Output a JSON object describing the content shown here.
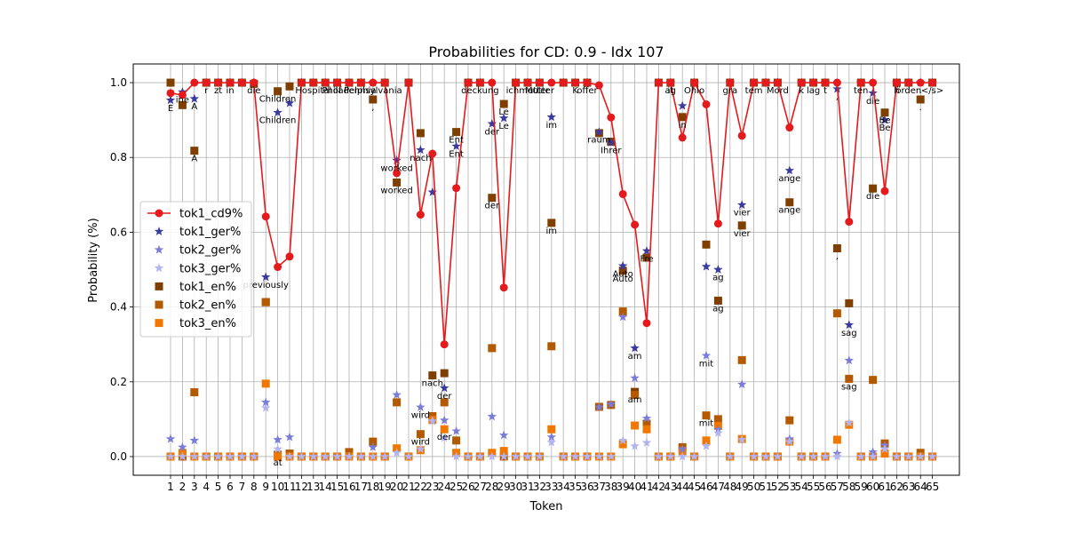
{
  "chart_data": {
    "type": "line",
    "title": "Probabilities for CD: 0.9 - Idx 107",
    "xlabel": "Token",
    "ylabel": "Probability (%)",
    "ylim": [
      -0.05,
      1.05
    ],
    "yticks": [
      0.0,
      0.2,
      0.4,
      0.6,
      0.8,
      1.0
    ],
    "grid": true,
    "legend_placement": "center-left",
    "categories": [
      "1",
      "2",
      "3",
      "4",
      "5",
      "6",
      "7",
      "8",
      "9",
      "10",
      "11",
      "12",
      "13",
      "14",
      "15",
      "16",
      "17",
      "18",
      "19",
      "20",
      "21",
      "22",
      "23",
      "24",
      "25",
      "26",
      "27",
      "28",
      "29",
      "30",
      "31",
      "32",
      "33",
      "34",
      "35",
      "36",
      "37",
      "38",
      "39",
      "40",
      "41",
      "42",
      "43",
      "44",
      "45",
      "46",
      "47",
      "48",
      "49",
      "50",
      "51",
      "52",
      "53",
      "54",
      "55",
      "56",
      "57",
      "58",
      "59",
      "60",
      "61",
      "62",
      "63",
      "64",
      "65"
    ],
    "series": [
      {
        "name": "tok1_cd9%",
        "color": "#e41a1c",
        "marker": "circle",
        "line": true,
        "values": [
          0.972,
          0.967,
          1.0,
          1.0,
          1.0,
          1.0,
          1.0,
          1.0,
          0.642,
          0.507,
          0.535,
          1.0,
          1.0,
          1.0,
          1.0,
          1.0,
          1.0,
          1.0,
          1.0,
          0.758,
          1.0,
          0.647,
          0.81,
          0.3,
          0.718,
          1.0,
          1.0,
          1.0,
          0.452,
          1.0,
          1.0,
          1.0,
          1.0,
          1.0,
          1.0,
          1.0,
          0.993,
          0.907,
          0.702,
          0.62,
          0.357,
          1.0,
          1.0,
          0.853,
          1.0,
          0.942,
          0.623,
          1.0,
          0.858,
          1.0,
          1.0,
          1.0,
          0.88,
          1.0,
          1.0,
          1.0,
          1.0,
          0.628,
          1.0,
          1.0,
          0.71,
          1.0,
          1.0,
          1.0,
          1.0
        ]
      },
      {
        "name": "tok1_ger%",
        "color": "#3b3b9e",
        "marker": "star",
        "values": [
          0.953,
          0.975,
          0.957,
          1.0,
          1.0,
          1.0,
          1.0,
          1.0,
          0.48,
          0.92,
          0.945,
          1.0,
          1.0,
          1.0,
          1.0,
          1.0,
          1.0,
          1.0,
          1.0,
          0.792,
          1.0,
          0.82,
          0.707,
          0.183,
          0.83,
          1.0,
          1.0,
          0.89,
          0.905,
          1.0,
          1.0,
          1.0,
          0.908,
          1.0,
          1.0,
          1.0,
          0.868,
          0.84,
          0.51,
          0.29,
          0.55,
          1.0,
          1.0,
          0.938,
          1.0,
          0.508,
          0.5,
          1.0,
          0.673,
          1.0,
          1.0,
          1.0,
          0.765,
          1.0,
          1.0,
          1.0,
          0.983,
          0.352,
          1.0,
          0.972,
          0.9,
          1.0,
          1.0,
          1.0,
          1.0
        ]
      },
      {
        "name": "tok2_ger%",
        "color": "#7b7bd8",
        "marker": "star",
        "values": [
          0.047,
          0.025,
          0.043,
          0.0,
          0.0,
          0.0,
          0.0,
          0.0,
          0.145,
          0.045,
          0.052,
          0.0,
          0.0,
          0.0,
          0.0,
          0.0,
          0.0,
          0.025,
          0.0,
          0.165,
          0.0,
          0.132,
          0.095,
          0.097,
          0.068,
          0.0,
          0.0,
          0.107,
          0.057,
          0.0,
          0.0,
          0.0,
          0.052,
          0.0,
          0.0,
          0.0,
          0.132,
          0.14,
          0.373,
          0.21,
          0.102,
          0.0,
          0.0,
          0.02,
          0.0,
          0.27,
          0.072,
          0.0,
          0.193,
          0.0,
          0.0,
          0.0,
          0.047,
          0.0,
          0.0,
          0.0,
          0.008,
          0.257,
          0.0,
          0.012,
          0.03,
          0.0,
          0.0,
          0.0,
          0.0
        ]
      },
      {
        "name": "tok3_ger%",
        "color": "#b3b3f0",
        "marker": "star",
        "values": [
          0.0,
          0.0,
          0.0,
          0.0,
          0.0,
          0.0,
          0.0,
          0.0,
          0.13,
          0.02,
          0.0,
          0.0,
          0.0,
          0.0,
          0.0,
          0.0,
          0.0,
          0.0,
          0.0,
          0.01,
          0.0,
          0.02,
          0.095,
          0.05,
          0.0,
          0.0,
          0.0,
          0.0,
          0.0,
          0.0,
          0.0,
          0.0,
          0.038,
          0.0,
          0.0,
          0.0,
          0.0,
          0.0,
          0.043,
          0.028,
          0.037,
          0.0,
          0.0,
          0.0,
          0.0,
          0.028,
          0.063,
          0.0,
          0.045,
          0.0,
          0.0,
          0.0,
          0.04,
          0.0,
          0.0,
          0.0,
          0.0,
          0.09,
          0.0,
          0.0,
          0.02,
          0.0,
          0.0,
          0.0,
          0.0
        ]
      },
      {
        "name": "tok1_en%",
        "color": "#7f3f00",
        "marker": "square",
        "values": [
          1.0,
          0.94,
          0.818,
          1.0,
          1.0,
          1.0,
          1.0,
          0.997,
          0.413,
          0.977,
          0.99,
          1.0,
          1.0,
          1.0,
          1.0,
          1.0,
          1.0,
          0.955,
          1.0,
          0.733,
          1.0,
          0.865,
          0.217,
          0.223,
          0.868,
          1.0,
          1.0,
          0.692,
          0.943,
          1.0,
          1.0,
          1.0,
          0.625,
          1.0,
          1.0,
          1.0,
          0.865,
          0.842,
          0.497,
          0.173,
          0.532,
          1.0,
          1.0,
          0.908,
          1.0,
          0.567,
          0.417,
          1.0,
          0.618,
          1.0,
          1.0,
          1.0,
          0.68,
          1.0,
          1.0,
          1.0,
          0.557,
          0.41,
          1.0,
          0.717,
          0.92,
          1.0,
          1.0,
          0.955,
          1.0
        ]
      },
      {
        "name": "tok2_en%",
        "color": "#b35900",
        "marker": "square",
        "values": [
          0.0,
          0.0,
          0.172,
          0.0,
          0.0,
          0.0,
          0.0,
          0.0,
          0.413,
          0.005,
          0.008,
          0.0,
          0.0,
          0.0,
          0.0,
          0.012,
          0.0,
          0.04,
          0.0,
          0.145,
          0.0,
          0.06,
          0.108,
          0.145,
          0.043,
          0.0,
          0.0,
          0.29,
          0.0,
          0.0,
          0.0,
          0.0,
          0.295,
          0.0,
          0.0,
          0.0,
          0.133,
          0.138,
          0.388,
          0.165,
          0.088,
          0.0,
          0.0,
          0.025,
          0.0,
          0.11,
          0.1,
          0.0,
          0.258,
          0.0,
          0.0,
          0.0,
          0.097,
          0.0,
          0.0,
          0.0,
          0.383,
          0.208,
          0.0,
          0.205,
          0.035,
          0.0,
          0.0,
          0.01,
          0.0
        ]
      },
      {
        "name": "tok3_en%",
        "color": "#f07800",
        "marker": "square",
        "values": [
          0.0,
          0.01,
          0.0,
          0.0,
          0.0,
          0.0,
          0.0,
          0.0,
          0.195,
          0.0,
          0.0,
          0.0,
          0.0,
          0.0,
          0.0,
          0.0,
          0.0,
          0.0,
          0.0,
          0.022,
          0.0,
          0.017,
          0.098,
          0.073,
          0.01,
          0.0,
          0.0,
          0.01,
          0.015,
          0.0,
          0.0,
          0.0,
          0.073,
          0.0,
          0.0,
          0.0,
          0.0,
          0.0,
          0.033,
          0.083,
          0.073,
          0.0,
          0.0,
          0.015,
          0.0,
          0.043,
          0.082,
          0.0,
          0.047,
          0.0,
          0.0,
          0.0,
          0.04,
          0.0,
          0.0,
          0.0,
          0.045,
          0.085,
          0.0,
          0.0,
          0.008,
          0.0,
          0.0,
          0.0,
          0.0
        ]
      }
    ],
    "annotations": [
      {
        "x": 1,
        "y": 0.953,
        "text": "E"
      },
      {
        "x": 2,
        "y": 0.975,
        "text": "ine"
      },
      {
        "x": 3,
        "y": 0.957,
        "text": "A"
      },
      {
        "x": 3,
        "y": 0.818,
        "text": "A"
      },
      {
        "x": 4,
        "y": 1.0,
        "text": "r"
      },
      {
        "x": 5,
        "y": 1.0,
        "text": "zt"
      },
      {
        "x": 6,
        "y": 1.0,
        "text": "in"
      },
      {
        "x": 8,
        "y": 1.0,
        "text": "die"
      },
      {
        "x": 9,
        "y": 0.48,
        "text": "previously"
      },
      {
        "x": 10,
        "y": 0.977,
        "text": "Children"
      },
      {
        "x": 10,
        "y": 0.92,
        "text": "Children"
      },
      {
        "x": 10,
        "y": 0.005,
        "text": "at"
      },
      {
        "x": 13,
        "y": 1.0,
        "text": "Hospital"
      },
      {
        "x": 15,
        "y": 1.0,
        "text": "of"
      },
      {
        "x": 16,
        "y": 1.0,
        "text": "Philadelphia"
      },
      {
        "x": 18,
        "y": 1.0,
        "text": "Pennsylvania"
      },
      {
        "x": 18,
        "y": 0.955,
        "text": ","
      },
      {
        "x": 20,
        "y": 0.792,
        "text": "worked"
      },
      {
        "x": 20,
        "y": 0.733,
        "text": "worked"
      },
      {
        "x": 22,
        "y": 0.82,
        "text": "nach"
      },
      {
        "x": 23,
        "y": 0.217,
        "text": "nach"
      },
      {
        "x": 22,
        "y": 0.132,
        "text": "wird"
      },
      {
        "x": 22,
        "y": 0.06,
        "text": "wird"
      },
      {
        "x": 24,
        "y": 0.183,
        "text": "der"
      },
      {
        "x": 24,
        "y": 0.073,
        "text": "der"
      },
      {
        "x": 25,
        "y": 0.868,
        "text": "Ent"
      },
      {
        "x": 25,
        "y": 0.83,
        "text": "Ent"
      },
      {
        "x": 27,
        "y": 1.0,
        "text": "deckung"
      },
      {
        "x": 28,
        "y": 0.89,
        "text": "der"
      },
      {
        "x": 28,
        "y": 0.692,
        "text": "der"
      },
      {
        "x": 29,
        "y": 0.943,
        "text": "Le"
      },
      {
        "x": 29,
        "y": 0.905,
        "text": "Le"
      },
      {
        "x": 31,
        "y": 1.0,
        "text": "ichmutter"
      },
      {
        "x": 32,
        "y": 1.0,
        "text": "Mutter"
      },
      {
        "x": 33,
        "y": 0.908,
        "text": "im"
      },
      {
        "x": 33,
        "y": 0.625,
        "text": "im"
      },
      {
        "x": 35,
        "y": 1.0,
        "text": "K"
      },
      {
        "x": 36,
        "y": 1.0,
        "text": "offer"
      },
      {
        "x": 37,
        "y": 0.868,
        "text": "raum"
      },
      {
        "x": 38,
        "y": 0.84,
        "text": "Ihrer"
      },
      {
        "x": 39,
        "y": 0.51,
        "text": "Auto"
      },
      {
        "x": 39,
        "y": 0.497,
        "text": "Auto"
      },
      {
        "x": 40,
        "y": 0.29,
        "text": "am"
      },
      {
        "x": 40,
        "y": 0.173,
        "text": "am"
      },
      {
        "x": 41,
        "y": 0.55,
        "text": "Fre"
      },
      {
        "x": 43,
        "y": 1.0,
        "text": "it"
      },
      {
        "x": 43,
        "y": 1.0,
        "text": "ag"
      },
      {
        "x": 44,
        "y": 0.908,
        "text": "in"
      },
      {
        "x": 45,
        "y": 1.0,
        "text": "Ohio"
      },
      {
        "x": 46,
        "y": 0.27,
        "text": "mit"
      },
      {
        "x": 46,
        "y": 0.11,
        "text": "mit"
      },
      {
        "x": 47,
        "y": 0.5,
        "text": "ag"
      },
      {
        "x": 47,
        "y": 0.417,
        "text": "ag"
      },
      {
        "x": 48,
        "y": 1.0,
        "text": "gra"
      },
      {
        "x": 49,
        "y": 0.673,
        "text": "vier"
      },
      {
        "x": 49,
        "y": 0.618,
        "text": "vier"
      },
      {
        "x": 50,
        "y": 1.0,
        "text": "tem"
      },
      {
        "x": 52,
        "y": 1.0,
        "text": "Mord"
      },
      {
        "x": 53,
        "y": 0.765,
        "text": "ange"
      },
      {
        "x": 53,
        "y": 0.68,
        "text": "ange"
      },
      {
        "x": 54,
        "y": 1.0,
        "text": "k"
      },
      {
        "x": 55,
        "y": 1.0,
        "text": "lag"
      },
      {
        "x": 56,
        "y": 1.0,
        "text": "t"
      },
      {
        "x": 57,
        "y": 0.983,
        "text": ","
      },
      {
        "x": 57,
        "y": 0.557,
        "text": ","
      },
      {
        "x": 58,
        "y": 0.352,
        "text": "sag"
      },
      {
        "x": 58,
        "y": 0.208,
        "text": "sag"
      },
      {
        "x": 59,
        "y": 1.0,
        "text": "ten"
      },
      {
        "x": 60,
        "y": 0.972,
        "text": "die"
      },
      {
        "x": 60,
        "y": 0.717,
        "text": "die"
      },
      {
        "x": 61,
        "y": 0.92,
        "text": "Be"
      },
      {
        "x": 61,
        "y": 0.9,
        "text": "Be"
      },
      {
        "x": 62,
        "y": 1.0,
        "text": "h"
      },
      {
        "x": 63,
        "y": 1.0,
        "text": "örden"
      },
      {
        "x": 64,
        "y": 1.0,
        "text": "."
      },
      {
        "x": 64,
        "y": 0.955,
        "text": "."
      },
      {
        "x": 65,
        "y": 1.0,
        "text": "</s>"
      }
    ]
  }
}
